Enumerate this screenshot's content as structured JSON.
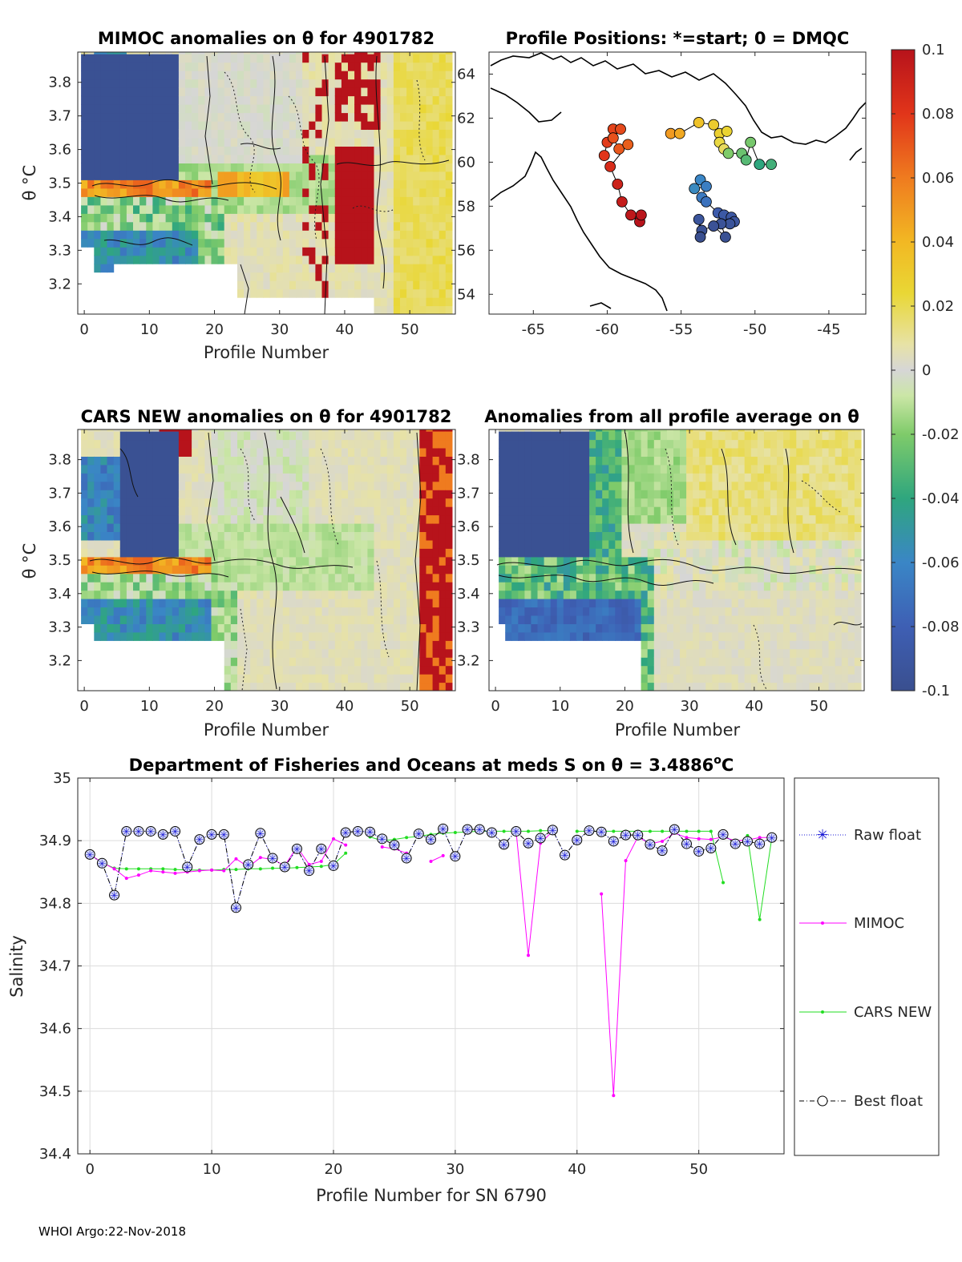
{
  "chart_data": [
    {
      "id": "mimoc",
      "type": "heatmap",
      "title": "MIMOC anomalies on θ  for 4901782",
      "xlabel": "Profile Number",
      "ylabel": "θ °C",
      "xlim": [
        -1,
        57
      ],
      "ylim": [
        3.11,
        3.89
      ],
      "xticks": [
        0,
        10,
        20,
        30,
        40,
        50
      ],
      "yticks": [
        3.2,
        3.3,
        3.4,
        3.5,
        3.6,
        3.7,
        3.8
      ]
    },
    {
      "id": "positions",
      "type": "scatter",
      "title": "Profile Positions: *=start; 0 = DMQC",
      "xlim": [
        -68,
        -42.5
      ],
      "ylim": [
        53.1,
        65
      ],
      "xticks": [
        -65,
        -60,
        -55,
        -50,
        -45
      ],
      "yticks": [
        54,
        56,
        58,
        60,
        62,
        64
      ],
      "points": [
        {
          "lon": -60.2,
          "lat": 60.3,
          "v": 0.08
        },
        {
          "lon": -60.0,
          "lat": 60.9,
          "v": 0.078
        },
        {
          "lon": -59.6,
          "lat": 61.5,
          "v": 0.076
        },
        {
          "lon": -59.1,
          "lat": 61.5,
          "v": 0.074
        },
        {
          "lon": -59.6,
          "lat": 61.1,
          "v": 0.072
        },
        {
          "lon": -59.2,
          "lat": 60.6,
          "v": 0.07
        },
        {
          "lon": -58.6,
          "lat": 60.8,
          "v": 0.068
        },
        {
          "lon": -59.8,
          "lat": 59.8,
          "v": 0.085
        },
        {
          "lon": -59.3,
          "lat": 59.0,
          "v": 0.09
        },
        {
          "lon": -59.0,
          "lat": 58.2,
          "v": 0.094
        },
        {
          "lon": -58.4,
          "lat": 57.6,
          "v": 0.097
        },
        {
          "lon": -57.8,
          "lat": 57.3,
          "v": 0.1
        },
        {
          "lon": -57.7,
          "lat": 57.6,
          "v": 0.099
        },
        {
          "lon": -55.7,
          "lat": 61.3,
          "v": 0.05
        },
        {
          "lon": -55.1,
          "lat": 61.3,
          "v": 0.045
        },
        {
          "lon": -53.8,
          "lat": 61.8,
          "v": 0.035
        },
        {
          "lon": -52.8,
          "lat": 61.7,
          "v": 0.03
        },
        {
          "lon": -52.4,
          "lat": 61.3,
          "v": 0.028
        },
        {
          "lon": -51.9,
          "lat": 61.4,
          "v": 0.026
        },
        {
          "lon": -52.4,
          "lat": 60.9,
          "v": 0.022
        },
        {
          "lon": -52.1,
          "lat": 60.6,
          "v": 0.018
        },
        {
          "lon": -51.8,
          "lat": 60.4,
          "v": -0.02
        },
        {
          "lon": -50.9,
          "lat": 60.4,
          "v": -0.025
        },
        {
          "lon": -50.6,
          "lat": 60.1,
          "v": -0.03
        },
        {
          "lon": -50.3,
          "lat": 60.9,
          "v": -0.022
        },
        {
          "lon": -49.7,
          "lat": 59.9,
          "v": -0.04
        },
        {
          "lon": -48.9,
          "lat": 59.9,
          "v": -0.035
        },
        {
          "lon": -53.7,
          "lat": 59.2,
          "v": -0.06
        },
        {
          "lon": -54.1,
          "lat": 58.8,
          "v": -0.058
        },
        {
          "lon": -53.3,
          "lat": 58.9,
          "v": -0.064
        },
        {
          "lon": -53.6,
          "lat": 58.4,
          "v": -0.066
        },
        {
          "lon": -53.3,
          "lat": 58.2,
          "v": -0.07
        },
        {
          "lon": -52.5,
          "lat": 57.7,
          "v": -0.085
        },
        {
          "lon": -52.1,
          "lat": 57.6,
          "v": -0.088
        },
        {
          "lon": -51.6,
          "lat": 57.5,
          "v": -0.09
        },
        {
          "lon": -51.4,
          "lat": 57.3,
          "v": -0.092
        },
        {
          "lon": -51.7,
          "lat": 57.2,
          "v": -0.094
        },
        {
          "lon": -52.3,
          "lat": 57.2,
          "v": -0.095
        },
        {
          "lon": -52.0,
          "lat": 56.6,
          "v": -0.098
        },
        {
          "lon": -52.8,
          "lat": 57.1,
          "v": -0.096
        },
        {
          "lon": -53.6,
          "lat": 56.9,
          "v": -0.098
        },
        {
          "lon": -53.8,
          "lat": 57.4,
          "v": -0.093
        },
        {
          "lon": -53.7,
          "lat": 56.6,
          "v": -0.1
        }
      ]
    },
    {
      "id": "colorbar",
      "type": "heatmap",
      "clim": [
        -0.1,
        0.1
      ],
      "ticks": [
        0.1,
        0.08,
        0.06,
        0.04,
        0.02,
        0,
        -0.02,
        -0.04,
        -0.06,
        -0.08,
        -0.1
      ],
      "tick_labels": [
        "0.1",
        "0.08",
        "0.06",
        "0.04",
        "0.02",
        "0",
        "-0.02",
        "-0.04",
        "-0.06",
        "-0.08",
        "-0.1"
      ]
    },
    {
      "id": "cars",
      "type": "heatmap",
      "title": "CARS NEW anomalies on θ for 4901782",
      "xlabel": "Profile Number",
      "ylabel": "θ °C",
      "xlim": [
        -1,
        57
      ],
      "ylim": [
        3.11,
        3.89
      ],
      "xticks": [
        0,
        10,
        20,
        30,
        40,
        50
      ],
      "yticks": [
        3.2,
        3.3,
        3.4,
        3.5,
        3.6,
        3.7,
        3.8
      ]
    },
    {
      "id": "allavg",
      "type": "heatmap",
      "title": "Anomalies from all profile average on θ",
      "xlabel": "Profile Number",
      "xlim": [
        -1,
        57
      ],
      "ylim": [
        3.11,
        3.89
      ],
      "xticks": [
        0,
        10,
        20,
        30,
        40,
        50
      ],
      "yticks": [
        3.2,
        3.3,
        3.4,
        3.5,
        3.6,
        3.7,
        3.8
      ]
    },
    {
      "id": "salinity",
      "type": "line",
      "title_prefix": "Department of Fisheries and Oceans at meds S on θ = 3.4886",
      "title_sup": "o",
      "title_suffix": "C",
      "xlabel": "Profile Number for SN 6790",
      "ylabel": "Salinity",
      "xlim": [
        -1,
        57
      ],
      "ylim": [
        34.4,
        35
      ],
      "xticks": [
        0,
        10,
        20,
        30,
        40,
        50
      ],
      "yticks": [
        34.4,
        34.5,
        34.6,
        34.7,
        34.8,
        34.9,
        35
      ],
      "ytick_labels": [
        "34.4",
        "34.5",
        "34.6",
        "34.7",
        "34.8",
        "34.9",
        "35"
      ],
      "legend": [
        "Raw float",
        "MIMOC",
        "CARS NEW",
        "Best float"
      ],
      "series": [
        {
          "name": "Best float",
          "x": [
            0,
            1,
            2,
            3,
            4,
            5,
            6,
            7,
            8,
            9,
            10,
            11,
            12,
            13,
            14,
            15,
            16,
            17,
            18,
            19,
            20,
            21,
            22,
            23,
            24,
            25,
            26,
            27,
            28,
            29,
            30,
            31,
            32,
            33,
            34,
            35,
            36,
            37,
            38,
            39,
            40,
            41,
            42,
            43,
            44,
            45,
            46,
            47,
            48,
            49,
            50,
            51,
            52,
            53,
            54,
            55,
            56
          ],
          "values": [
            34.878,
            34.864,
            34.813,
            34.915,
            34.915,
            34.915,
            34.91,
            34.915,
            34.858,
            34.902,
            34.91,
            34.91,
            34.793,
            34.862,
            34.912,
            34.872,
            34.858,
            34.887,
            34.852,
            34.887,
            34.86,
            34.913,
            34.915,
            34.914,
            34.903,
            34.893,
            34.872,
            34.911,
            34.902,
            34.919,
            34.875,
            34.918,
            34.918,
            34.913,
            34.894,
            34.915,
            34.896,
            34.904,
            34.917,
            34.877,
            34.901,
            34.916,
            34.914,
            34.899,
            34.909,
            34.909,
            34.894,
            34.884,
            34.918,
            34.895,
            34.883,
            34.888,
            34.91,
            34.895,
            34.899,
            34.895,
            34.905
          ]
        },
        {
          "name": "MIMOC",
          "x": [
            0,
            1,
            2,
            3,
            4,
            5,
            6,
            7,
            8,
            9,
            10,
            11,
            12,
            13,
            14,
            15,
            16,
            17,
            18,
            19,
            20,
            21,
            null,
            24,
            25,
            26,
            null,
            28,
            29,
            null,
            35,
            36,
            37,
            38,
            null,
            42,
            43,
            44,
            45,
            46,
            47,
            48,
            49,
            50,
            51,
            52,
            53,
            54,
            55,
            56
          ],
          "values": [
            34.878,
            34.865,
            34.855,
            34.84,
            34.845,
            34.852,
            34.85,
            34.848,
            34.85,
            34.852,
            34.853,
            34.852,
            34.871,
            34.858,
            34.873,
            34.87,
            34.86,
            34.89,
            34.862,
            34.867,
            34.903,
            34.893,
            null,
            34.89,
            34.887,
            34.88,
            null,
            34.867,
            34.876,
            null,
            34.915,
            34.717,
            34.896,
            34.915,
            null,
            34.815,
            34.493,
            34.868,
            34.906,
            34.895,
            34.899,
            34.912,
            34.905,
            34.903,
            34.902,
            34.906,
            34.9,
            34.901,
            34.905,
            34.905
          ]
        },
        {
          "name": "CARS NEW",
          "x": [
            0,
            1,
            2,
            3,
            4,
            5,
            6,
            7,
            8,
            9,
            10,
            11,
            12,
            13,
            14,
            15,
            16,
            17,
            18,
            19,
            20,
            21,
            null,
            23,
            24,
            25,
            26,
            27,
            28,
            29,
            30,
            31,
            32,
            33,
            34,
            35,
            36,
            37,
            38,
            null,
            40,
            41,
            42,
            43,
            44,
            45,
            46,
            47,
            48,
            49,
            50,
            51,
            52,
            null,
            54,
            55,
            56
          ],
          "values": [
            34.878,
            34.865,
            34.856,
            34.855,
            34.855,
            34.855,
            34.855,
            34.854,
            34.853,
            34.853,
            34.853,
            34.854,
            34.854,
            34.855,
            34.855,
            34.856,
            34.856,
            34.857,
            34.858,
            34.859,
            34.862,
            34.88,
            null,
            34.906,
            34.9,
            34.902,
            34.905,
            34.907,
            34.91,
            34.912,
            34.913,
            34.914,
            34.915,
            34.915,
            34.915,
            34.915,
            34.915,
            34.916,
            34.916,
            null,
            34.915,
            34.915,
            34.915,
            34.915,
            34.915,
            34.915,
            34.915,
            34.915,
            34.915,
            34.915,
            34.915,
            34.915,
            34.833,
            null,
            34.908,
            34.774,
            34.905
          ]
        }
      ]
    }
  ],
  "footer": "WHOI Argo:22-Nov-2018"
}
